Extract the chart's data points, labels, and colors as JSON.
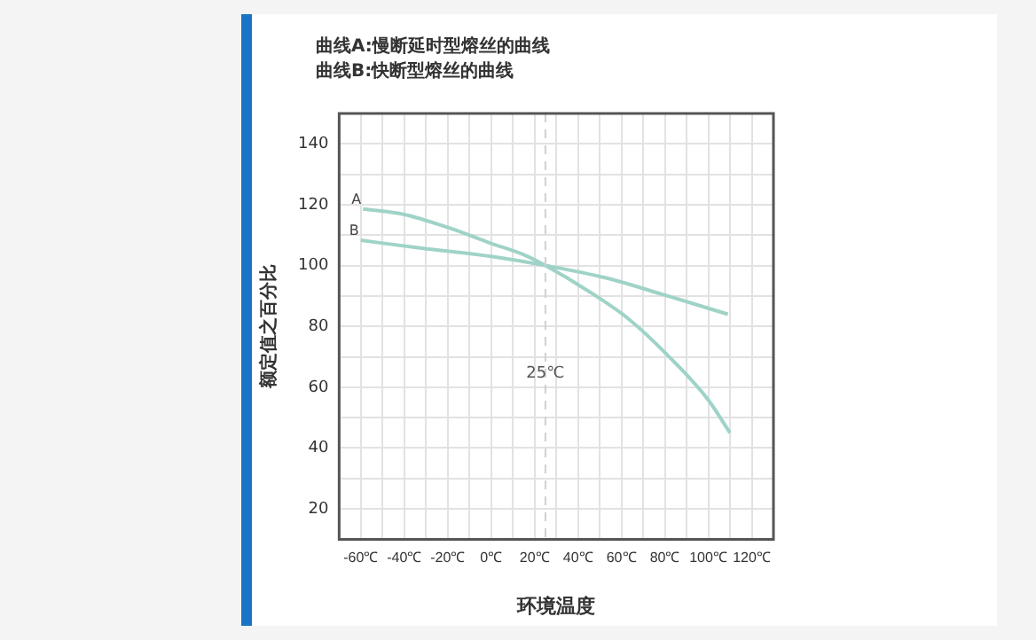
{
  "chart_data": {
    "type": "line",
    "title": "曲线A:慢断延时型熔丝的曲线",
    "subtitle": "曲线B:快断型熔丝的曲线",
    "xlabel": "环境温度",
    "ylabel": "额定值之百分比",
    "series": [
      {
        "name": "A",
        "color": "#9fd3c7",
        "x": [
          -59,
          -40,
          -19,
          0,
          15.5,
          25,
          45,
          63,
          81,
          100,
          110
        ],
        "values": [
          118.6,
          116.8,
          112.3,
          107.3,
          103.4,
          100,
          91.5,
          82.6,
          70.7,
          55.8,
          45
        ]
      },
      {
        "name": "B",
        "color": "#9fd3c7",
        "x": [
          -60,
          -32,
          0,
          25,
          52.5,
          79,
          109
        ],
        "values": [
          108.3,
          105.7,
          103,
          100,
          96,
          90.5,
          84
        ]
      }
    ],
    "xlim": [
      -70,
      130
    ],
    "ylim": [
      10,
      150
    ],
    "xticks": [
      {
        "value": -70,
        "label": null
      },
      {
        "value": -60,
        "label": "-60℃"
      },
      {
        "value": -50,
        "label": null
      },
      {
        "value": -40,
        "label": "-40℃"
      },
      {
        "value": -30,
        "label": null
      },
      {
        "value": -20,
        "label": "-20℃"
      },
      {
        "value": -10,
        "label": null
      },
      {
        "value": 0,
        "label": "0℃"
      },
      {
        "value": 10,
        "label": null
      },
      {
        "value": 20,
        "label": "20℃"
      },
      {
        "value": 30,
        "label": null
      },
      {
        "value": 40,
        "label": "40℃"
      },
      {
        "value": 50,
        "label": null
      },
      {
        "value": 60,
        "label": "60℃"
      },
      {
        "value": 70,
        "label": null
      },
      {
        "value": 80,
        "label": "80℃"
      },
      {
        "value": 90,
        "label": null
      },
      {
        "value": 100,
        "label": "100℃"
      },
      {
        "value": 110,
        "label": null
      },
      {
        "value": 120,
        "label": "120℃"
      },
      {
        "value": 130,
        "label": null
      }
    ],
    "yticks": [
      {
        "value": 10,
        "label": null
      },
      20,
      {
        "value": 30,
        "label": null
      },
      40,
      {
        "value": 50,
        "label": null
      },
      60,
      {
        "value": 70,
        "label": null
      },
      80,
      {
        "value": 90,
        "label": null
      },
      100,
      {
        "value": 110,
        "label": null
      },
      120,
      {
        "value": 130,
        "label": null
      },
      140,
      {
        "value": 150,
        "label": null
      }
    ],
    "ref_lines": [
      {
        "axis": "x",
        "value": 25,
        "label": "25℃",
        "line_style": "dashed",
        "color": "#d0d0d0"
      }
    ],
    "grid": true,
    "legend": false,
    "marker": "none",
    "line_style": "solid"
  }
}
